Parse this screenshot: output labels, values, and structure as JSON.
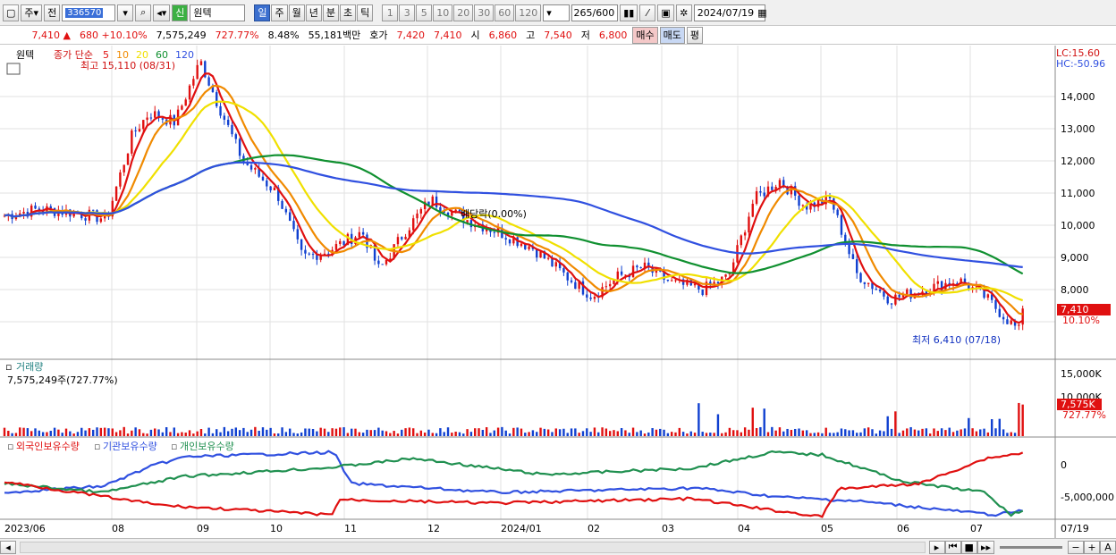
{
  "toolbar": {
    "market": "주",
    "period_prefix": "전",
    "code": "336570",
    "credit_badge": "신",
    "stock_name": "원텍",
    "periods": [
      "일",
      "주",
      "월",
      "년",
      "분",
      "초",
      "틱"
    ],
    "active_period": "일",
    "intervals": [
      "1",
      "3",
      "5",
      "10",
      "20",
      "30",
      "60",
      "120"
    ],
    "count": "265",
    "total": "/600",
    "date": "2024/07/19"
  },
  "quote": {
    "price": "7,410",
    "arrow": "▲",
    "change": "680",
    "change_pct": "+10.10%",
    "volume": "7,575,249",
    "vol_ratio": "727.77%",
    "turnover": "8.48%",
    "amount": "55,181백만",
    "ask_label": "호가",
    "ask": "7,420",
    "bid": "7,410",
    "open_label": "시",
    "open": "6,860",
    "high_label": "고",
    "high": "7,540",
    "low_label": "저",
    "low": "6,800",
    "buy": "매수",
    "sell": "매도",
    "avg": "평"
  },
  "price_panel": {
    "stock": "원텍",
    "ma_label": "종가 단순",
    "mas": [
      {
        "period": "5",
        "color": "#e01010"
      },
      {
        "period": "10",
        "color": "#f08a00"
      },
      {
        "period": "20",
        "color": "#f0e000"
      },
      {
        "period": "60",
        "color": "#109030"
      },
      {
        "period": "120",
        "color": "#3050e0"
      }
    ],
    "lc": "LC:15.60",
    "hc": "HC:-50.96",
    "high_note": "최고 15,110 (08/31)",
    "low_note": "최저 6,410 (07/18)",
    "dividend_note": "배당락(0.00%)",
    "y_ticks": [
      "14,000",
      "13,000",
      "12,000",
      "11,000",
      "10,000",
      "9,000",
      "8,000"
    ],
    "last_price": "7,410",
    "last_pct": "10.10%"
  },
  "volume_panel": {
    "title": "거래량",
    "value": "7,575,249주(727.77%)",
    "y_ticks": [
      "15,000K",
      "10,000K"
    ],
    "last": "7,575K",
    "last_pct": "727.77%"
  },
  "holding_panel": {
    "series": [
      "외국인보유수량",
      "기관보유수량",
      "개인보유수량"
    ],
    "colors": [
      "#e01010",
      "#3050e0",
      "#209050"
    ],
    "y_ticks": [
      "0",
      "-5,000,000"
    ]
  },
  "x_labels": [
    "2023/06",
    "08",
    "09",
    "10",
    "11",
    "12",
    "2024/01",
    "02",
    "03",
    "04",
    "05",
    "06",
    "07",
    "07/19"
  ]
}
